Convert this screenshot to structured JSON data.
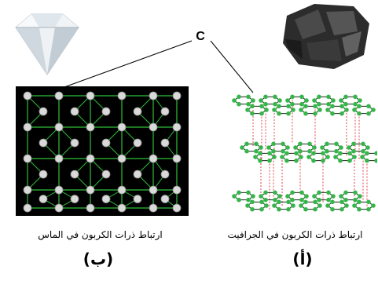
{
  "atom_label": "C",
  "diamond": {
    "caption": "ارتباط ذرات الكربون في الماس",
    "letter": "(ب)"
  },
  "graphite": {
    "caption": "ارتباط ذرات الكربون في الجرافيت",
    "letter": "(أ)"
  },
  "colors": {
    "diamond_bond": "#2fbf3a",
    "diamond_atom": "#d9d9d9",
    "graphite_bond": "#222222",
    "graphite_atom": "#35b54a",
    "graphite_interlayer": "#e0303a",
    "panel_background": "#000000"
  }
}
